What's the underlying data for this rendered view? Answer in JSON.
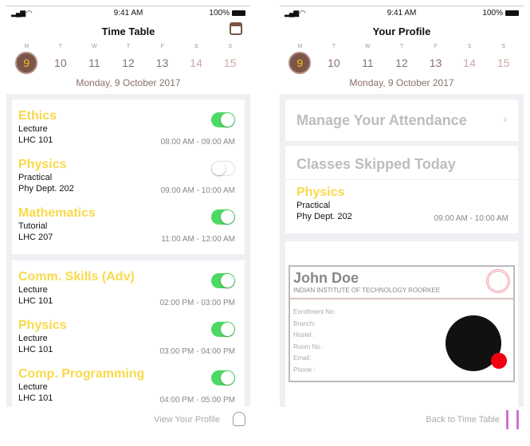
{
  "status": {
    "time": "9:41 AM",
    "battery": "100%"
  },
  "week": {
    "letters": [
      "M",
      "T",
      "W",
      "T",
      "F",
      "S",
      "S"
    ],
    "numbers": [
      "9",
      "10",
      "11",
      "12",
      "13",
      "14",
      "15"
    ],
    "selected": "9",
    "date": "Monday, 9 October 2017"
  },
  "timetable": {
    "title": "Time Table",
    "cards": [
      [
        {
          "subject": "Ethics",
          "type": "Lecture",
          "room": "LHC 101",
          "time": "08:00 AM - 09:00 AM",
          "on": true
        },
        {
          "subject": "Physics",
          "type": "Practical",
          "room": "Phy Dept. 202",
          "time": "09:00 AM - 10:00 AM",
          "on": false
        },
        {
          "subject": "Mathematics",
          "type": "Tutorial",
          "room": "LHC 207",
          "time": "11:00 AM - 12:00 AM",
          "on": true
        }
      ],
      [
        {
          "subject": "Comm. Skills (Adv)",
          "type": "Lecture",
          "room": "LHC 101",
          "time": "02:00 PM - 03:00 PM",
          "on": true
        },
        {
          "subject": "Physics",
          "type": "Lecture",
          "room": "LHC 101",
          "time": "03:00 PM - 04:00 PM",
          "on": true
        },
        {
          "subject": "Comp. Programming",
          "type": "Lecture",
          "room": "LHC 101",
          "time": "04:00 PM - 05:00 PM",
          "on": true
        }
      ]
    ],
    "footer": "View Your Profile"
  },
  "profile": {
    "title": "Your Profile",
    "manage": "Manage Your Attendance",
    "skipped_title": "Classes Skipped Today",
    "skipped": {
      "subject": "Physics",
      "type": "Practical",
      "room": "Phy Dept. 202",
      "time": "09:00 AM - 10:00 AM"
    },
    "id": {
      "name": "John Doe",
      "institute": "INDIAN INSTITUTE OF TECHNOLOGY ROORKEE",
      "fields": [
        "Enrollment No:",
        "Branch:",
        "Hostel :",
        "Room No :",
        "Email:",
        "Phone :"
      ]
    },
    "footer": "Back to Time Table"
  },
  "colors": {
    "accent": "#7a5548",
    "subject": "#f9d94a",
    "toggle": "#4cd964"
  }
}
